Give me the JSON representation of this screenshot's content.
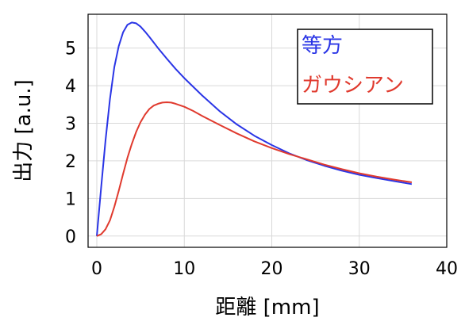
{
  "chart_data": {
    "type": "line",
    "title": "",
    "xlabel": "距離 [mm]",
    "ylabel": "出力 [a.u.]",
    "xlim": [
      -1,
      40
    ],
    "ylim": [
      -0.3,
      5.9
    ],
    "xticks": [
      0,
      10,
      20,
      30,
      40
    ],
    "yticks": [
      0,
      1,
      2,
      3,
      4,
      5
    ],
    "grid": true,
    "legend_position": "top-right",
    "series": [
      {
        "name": "等方",
        "color": "#2a35e6",
        "x": [
          0,
          0.5,
          1,
          1.5,
          2,
          2.5,
          3,
          3.5,
          4,
          4.5,
          5,
          5.5,
          6,
          7,
          8,
          9,
          10,
          12,
          14,
          16,
          18,
          20,
          22,
          24,
          26,
          28,
          30,
          32,
          34,
          36
        ],
        "y": [
          0.0,
          1.3,
          2.55,
          3.65,
          4.5,
          5.05,
          5.42,
          5.62,
          5.68,
          5.66,
          5.57,
          5.44,
          5.3,
          5.0,
          4.72,
          4.45,
          4.2,
          3.75,
          3.33,
          2.97,
          2.67,
          2.42,
          2.2,
          2.02,
          1.87,
          1.74,
          1.63,
          1.54,
          1.46,
          1.38
        ]
      },
      {
        "name": "ガウシアン",
        "color": "#e03a2e",
        "x": [
          0,
          0.5,
          1,
          1.5,
          2,
          2.5,
          3,
          3.5,
          4,
          4.5,
          5,
          5.5,
          6,
          6.5,
          7,
          7.5,
          8,
          8.5,
          9,
          10,
          11,
          12,
          14,
          16,
          18,
          20,
          22,
          24,
          26,
          28,
          30,
          32,
          34,
          36
        ],
        "y": [
          0.0,
          0.05,
          0.18,
          0.42,
          0.78,
          1.2,
          1.65,
          2.08,
          2.45,
          2.77,
          3.03,
          3.23,
          3.38,
          3.47,
          3.52,
          3.55,
          3.56,
          3.55,
          3.52,
          3.44,
          3.33,
          3.2,
          2.96,
          2.73,
          2.52,
          2.34,
          2.18,
          2.04,
          1.9,
          1.78,
          1.67,
          1.58,
          1.5,
          1.43
        ]
      }
    ]
  }
}
